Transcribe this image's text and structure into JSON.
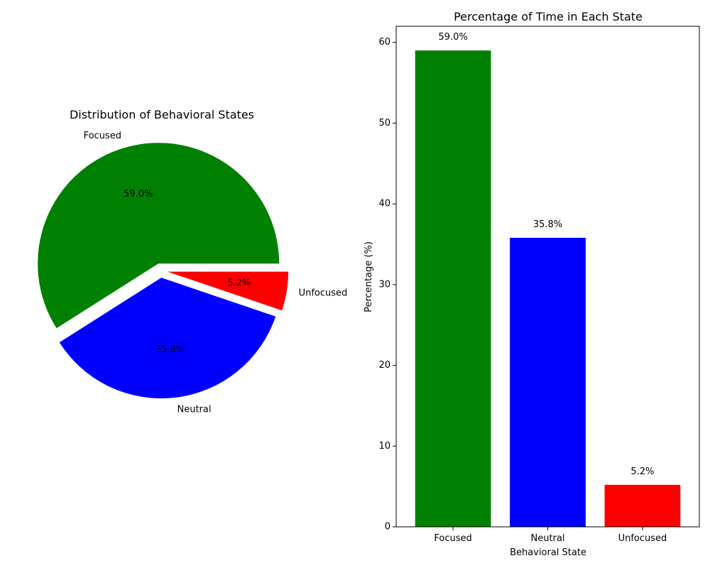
{
  "chart_data": [
    {
      "type": "pie",
      "title": "Distribution of Behavioral States",
      "labels": [
        "Focused",
        "Neutral",
        "Unfocused"
      ],
      "values": [
        59.0,
        35.8,
        5.2
      ],
      "value_labels": [
        "59.0%",
        "35.8%",
        "5.2%"
      ],
      "colors": [
        "#008000",
        "#0000ff",
        "#ff0000"
      ],
      "exploded": true
    },
    {
      "type": "bar",
      "title": "Percentage of Time in Each State",
      "categories": [
        "Focused",
        "Neutral",
        "Unfocused"
      ],
      "values": [
        59.0,
        35.8,
        5.2
      ],
      "value_labels": [
        "59.0%",
        "35.8%",
        "5.2%"
      ],
      "colors": [
        "#008000",
        "#0000ff",
        "#ff0000"
      ],
      "xlabel": "Behavioral State",
      "ylabel": "Percentage (%)",
      "ylim": [
        0,
        62
      ],
      "yticks": [
        0,
        10,
        20,
        30,
        40,
        50,
        60
      ],
      "grid": false
    }
  ]
}
